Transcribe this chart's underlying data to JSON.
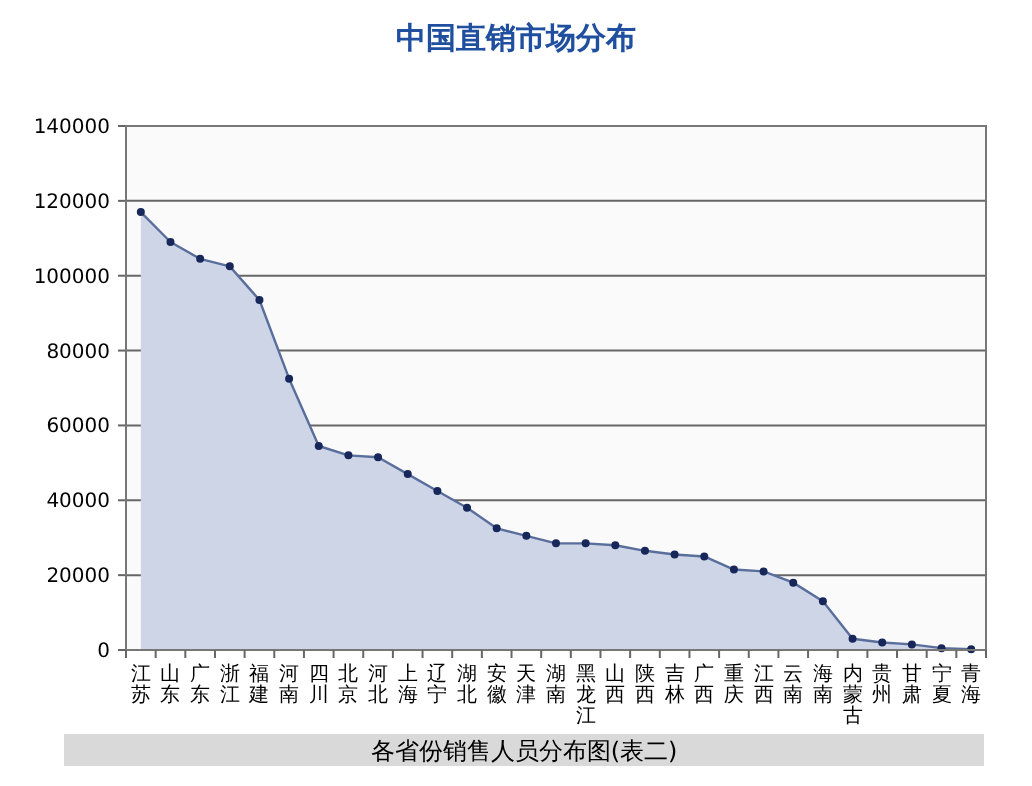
{
  "chart_data": {
    "type": "area",
    "title": "中国直销市场分布",
    "categories": [
      "江苏",
      "山东",
      "广东",
      "浙江",
      "福建",
      "河南",
      "四川",
      "北京",
      "河北",
      "上海",
      "辽宁",
      "湖北",
      "安徽",
      "天津",
      "湖南",
      "黑龙江",
      "山西",
      "陕西",
      "吉林",
      "广西",
      "重庆",
      "江西",
      "云南",
      "海南",
      "内蒙古",
      "贵州",
      "甘肃",
      "宁夏",
      "青海"
    ],
    "series": [
      {
        "color": "#5a6e9c",
        "values": [
          117000,
          109000,
          104500,
          102500,
          93500,
          72500,
          54500,
          52000,
          51500,
          47000,
          42500,
          38000,
          32500,
          30500,
          28500,
          28500,
          28000,
          26500,
          25500,
          25000,
          21500,
          21000,
          18000,
          13000,
          3000,
          2000,
          1500,
          500,
          200
        ]
      }
    ],
    "ylim": [
      0,
      140000
    ],
    "yticks": [
      0,
      20000,
      40000,
      60000,
      80000,
      100000,
      120000,
      140000
    ],
    "grid": "y",
    "marker": "circle",
    "annotations": [
      "各省份销售人员分布图(表二)"
    ]
  }
}
